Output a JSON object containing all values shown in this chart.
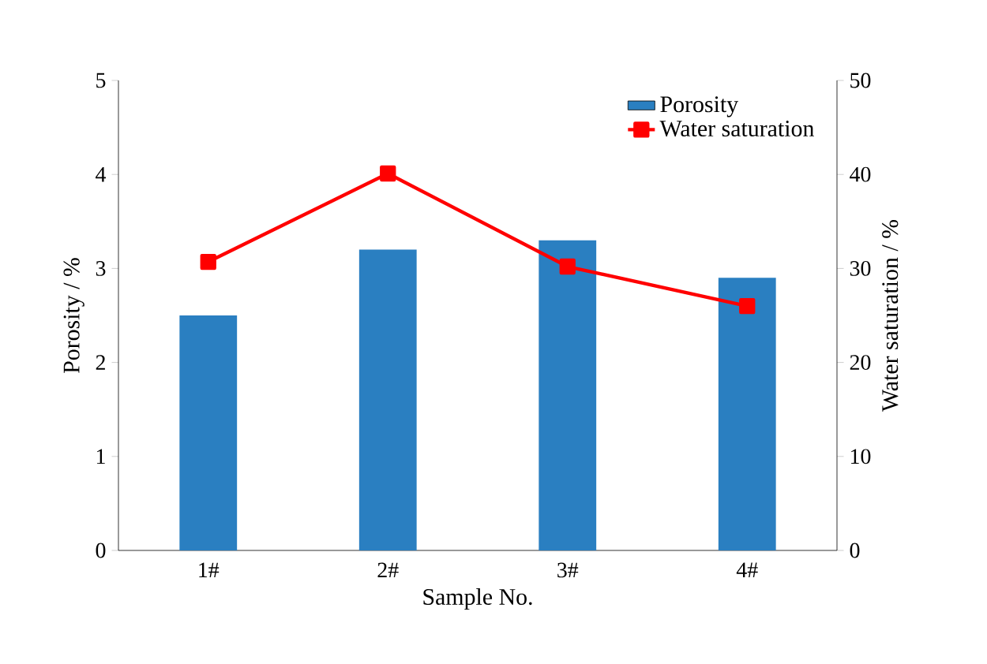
{
  "chart_data": {
    "type": "bar",
    "categories": [
      "1#",
      "2#",
      "3#",
      "4#"
    ],
    "xlabel": "Sample No.",
    "ylabel": "Porosity / %",
    "y2label": "Water saturation /  %",
    "ylim": [
      0,
      5
    ],
    "yticks": [
      0,
      1,
      2,
      3,
      4,
      5
    ],
    "y2lim": [
      0,
      50
    ],
    "y2ticks": [
      0,
      10,
      20,
      30,
      40,
      50
    ],
    "legend": "top right",
    "series": [
      {
        "name": "Porosity",
        "color": "#2a7fc1",
        "values": [
          2.5,
          3.2,
          3.3,
          2.9
        ]
      },
      {
        "name": "Water saturation",
        "type": "line",
        "axis": "y2",
        "color": "#ff0000",
        "marker": "square",
        "values": [
          30.7,
          40.1,
          30.2,
          26.0
        ]
      }
    ]
  }
}
